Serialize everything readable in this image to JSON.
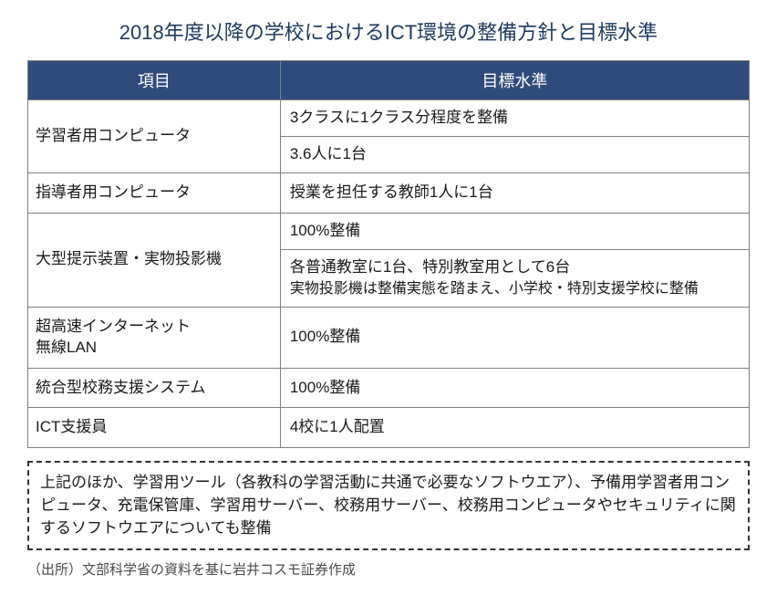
{
  "title": "2018年度以降の学校におけるICT環境の整備方針と目標水準",
  "table": {
    "header_col1": "項目",
    "header_col2": "目標水準",
    "header_bg": "#2f4b7c",
    "header_fg": "#ffffff",
    "border_color": "#7f7f7f",
    "col1_width_pct": 35,
    "col2_width_pct": 65,
    "rows": [
      {
        "category": "学習者用コンピュータ",
        "values": [
          "3クラスに1クラス分程度を整備",
          "3.6人に1台"
        ]
      },
      {
        "category": "指導者用コンピュータ",
        "values": [
          "授業を担任する教師1人に1台"
        ]
      },
      {
        "category": "大型提示装置・実物投影機",
        "values": [
          "100%整備",
          "各普通教室に1台、特別教室用として6台\n実物投影機は整備実態を踏まえ、小学校・特別支援学校に整備"
        ]
      },
      {
        "category": "超高速インターネット\n無線LAN",
        "values": [
          "100%整備"
        ]
      },
      {
        "category": "統合型校務支援システム",
        "values": [
          "100%整備"
        ]
      },
      {
        "category": "ICT支援員",
        "values": [
          "4校に1人配置"
        ]
      }
    ]
  },
  "note": "上記のほか、学習用ツール（各教科の学習活動に共通で必要なソフトウエア）、予備用学習者用コンピュータ、充電保管庫、学習用サーバー、校務用サーバー、校務用コンピュータやセキュリティに関するソフトウエアについても整備",
  "source": "（出所）文部科学省の資料を基に岩井コスモ証券作成",
  "style": {
    "title_color": "#1f3a5f",
    "title_fontsize": 22,
    "cell_fontsize": 17,
    "note_fontsize": 17,
    "source_fontsize": 15,
    "background": "#ffffff"
  }
}
